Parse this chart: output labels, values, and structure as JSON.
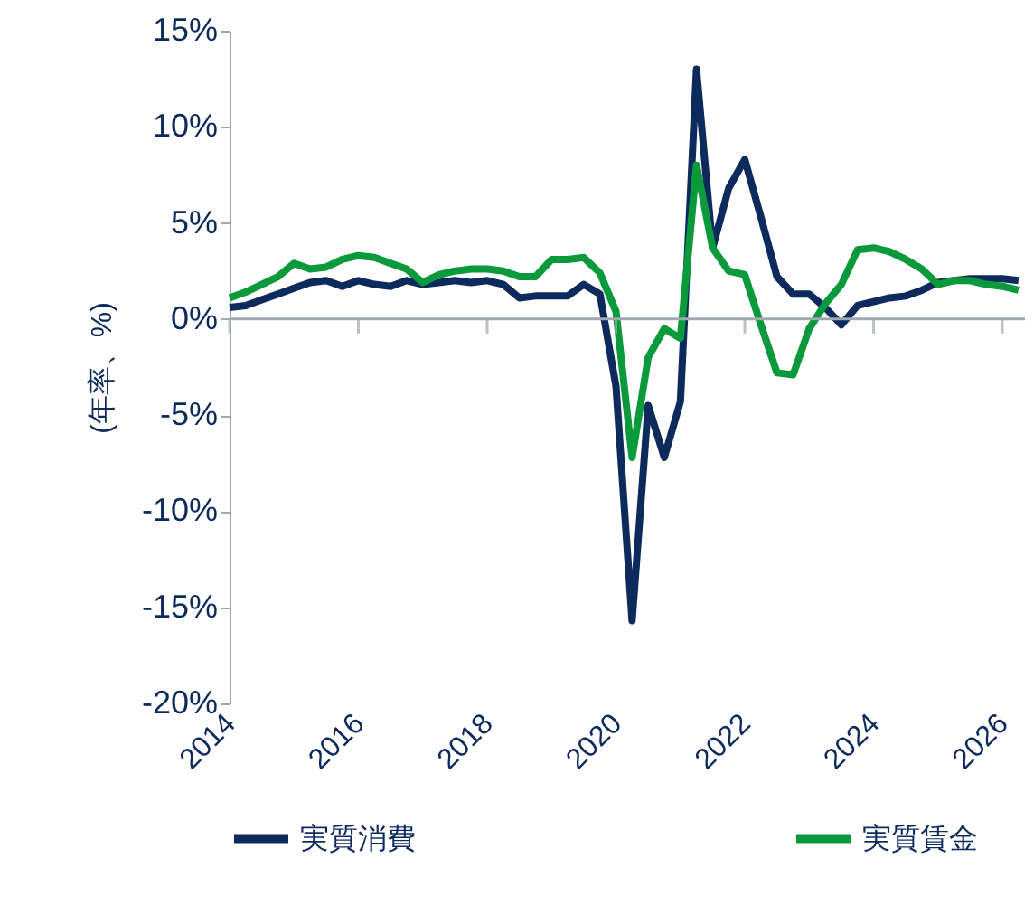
{
  "chart_data": {
    "type": "line",
    "ylabel": "(年率、%)",
    "x": [
      2014,
      2014.25,
      2014.5,
      2014.75,
      2015,
      2015.25,
      2015.5,
      2015.75,
      2016,
      2016.25,
      2016.5,
      2016.75,
      2017,
      2017.25,
      2017.5,
      2017.75,
      2018,
      2018.25,
      2018.5,
      2018.75,
      2019,
      2019.25,
      2019.5,
      2019.75,
      2020,
      2020.25,
      2020.5,
      2020.75,
      2021,
      2021.25,
      2021.5,
      2021.75,
      2022,
      2022.25,
      2022.5,
      2022.75,
      2023,
      2023.25,
      2023.5,
      2023.75,
      2024,
      2024.25,
      2024.5,
      2024.75,
      2025,
      2025.25,
      2025.5,
      2025.75,
      2026,
      2026.25
    ],
    "series": [
      {
        "name": "実質消費",
        "color": "#0c2a5b",
        "values": [
          0.6,
          0.7,
          1.0,
          1.3,
          1.6,
          1.9,
          2.0,
          1.7,
          2.0,
          1.8,
          1.7,
          2.0,
          1.8,
          1.9,
          2.0,
          1.9,
          2.0,
          1.8,
          1.1,
          1.2,
          1.2,
          1.2,
          1.8,
          1.3,
          -3.5,
          -15.7,
          -4.5,
          -7.2,
          -4.3,
          13.0,
          3.7,
          6.8,
          8.3,
          5.3,
          2.2,
          1.3,
          1.3,
          0.6,
          -0.3,
          0.7,
          0.9,
          1.1,
          1.2,
          1.5,
          1.9,
          2.0,
          2.1,
          2.1,
          2.1,
          2.0
        ]
      },
      {
        "name": "実質賃金",
        "color": "#0a9a3c",
        "values": [
          1.1,
          1.4,
          1.8,
          2.2,
          2.9,
          2.6,
          2.7,
          3.1,
          3.3,
          3.2,
          2.9,
          2.6,
          1.9,
          2.3,
          2.5,
          2.6,
          2.6,
          2.5,
          2.2,
          2.2,
          3.1,
          3.1,
          3.2,
          2.4,
          0.4,
          -7.2,
          -2.0,
          -0.5,
          -1.0,
          8.0,
          3.7,
          2.5,
          2.3,
          -0.3,
          -2.8,
          -2.9,
          -0.5,
          0.8,
          1.8,
          3.6,
          3.7,
          3.5,
          3.1,
          2.6,
          1.8,
          2.0,
          2.0,
          1.8,
          1.7,
          1.5
        ]
      }
    ],
    "xlim": [
      2014,
      2026.35
    ],
    "xticks": [
      2014,
      2016,
      2018,
      2020,
      2022,
      2024,
      2026
    ],
    "ylim": [
      -20,
      15
    ],
    "yticks": [
      {
        "value": -20,
        "label": "-20%"
      },
      {
        "value": -15,
        "label": "-15%"
      },
      {
        "value": -10,
        "label": "-10%"
      },
      {
        "value": -5,
        "label": "-5%"
      },
      {
        "value": 0,
        "label": "0%"
      },
      {
        "value": 5,
        "label": "5%"
      },
      {
        "value": 10,
        "label": "10%"
      },
      {
        "value": 15,
        "label": "15%"
      }
    ],
    "ref_lines": [
      {
        "axis": "y",
        "value": 0,
        "color": "#a0a8b0"
      }
    ],
    "legend": "bottom",
    "marker": "none",
    "line_style": "solid"
  }
}
